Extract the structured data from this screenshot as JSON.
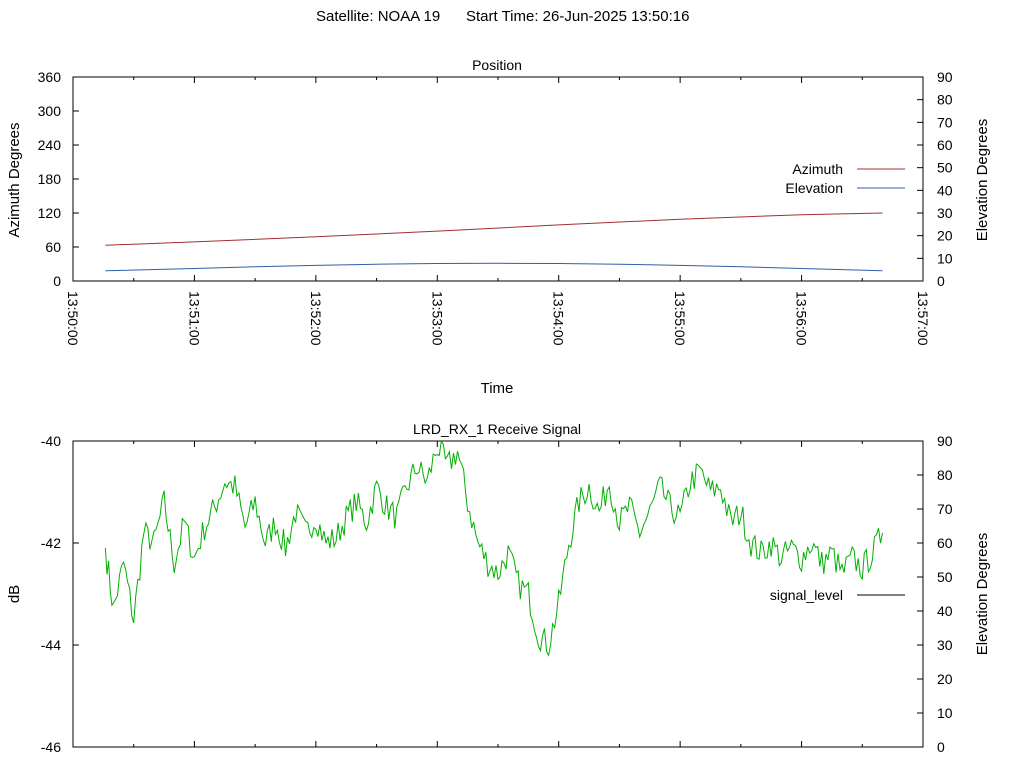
{
  "header": {
    "satellite_text": "Satellite: NOAA 19",
    "start_time_text": "Start Time: 26-Jun-2025 13:50:16"
  },
  "colors": {
    "azimuth": "#a0302f",
    "elevation": "#3060a8",
    "signal": "#00b000",
    "axis": "#000000"
  },
  "chart_data": [
    {
      "type": "line",
      "title": "Position",
      "xlabel": "Time",
      "ylabel": "Azimuth Degrees",
      "y2label": "Elevation Degrees",
      "xlim": [
        "13:50:00",
        "13:57:00"
      ],
      "x_tick_labels": [
        "13:50:00",
        "13:51:00",
        "13:52:00",
        "13:53:00",
        "13:54:00",
        "13:55:00",
        "13:56:00",
        "13:57:00"
      ],
      "ylim": [
        0,
        360
      ],
      "y_tick_labels": [
        "0",
        "60",
        "120",
        "180",
        "240",
        "300",
        "360"
      ],
      "y2lim": [
        0,
        90
      ],
      "y2_tick_labels": [
        "0",
        "10",
        "20",
        "30",
        "40",
        "50",
        "60",
        "70",
        "80",
        "90"
      ],
      "grid": false,
      "legend_position": "right",
      "series": [
        {
          "name": "Azimuth",
          "axis": "y",
          "x": [
            "13:50:16",
            "13:51:00",
            "13:52:00",
            "13:53:00",
            "13:54:00",
            "13:55:00",
            "13:56:00",
            "13:56:40"
          ],
          "values": [
            63,
            69,
            78,
            88,
            99,
            109,
            117,
            120
          ]
        },
        {
          "name": "Elevation",
          "axis": "y2",
          "x": [
            "13:50:16",
            "13:51:00",
            "13:51:30",
            "13:52:00",
            "13:52:30",
            "13:53:00",
            "13:53:30",
            "13:54:00",
            "13:54:30",
            "13:55:00",
            "13:55:30",
            "13:56:00",
            "13:56:40"
          ],
          "values": [
            4.5,
            5.5,
            6.3,
            6.9,
            7.4,
            7.7,
            7.8,
            7.7,
            7.4,
            6.9,
            6.3,
            5.5,
            4.5
          ]
        }
      ]
    },
    {
      "type": "line",
      "title": "LRD_RX_1 Receive Signal",
      "ylabel": "dB",
      "y2label": "Elevation Degrees",
      "xlim": [
        "13:50:00",
        "13:57:00"
      ],
      "ylim": [
        -46,
        -40
      ],
      "y_tick_labels": [
        "-46",
        "-44",
        "-42",
        "-40"
      ],
      "y2lim": [
        0,
        90
      ],
      "y2_tick_labels": [
        "0",
        "10",
        "20",
        "30",
        "40",
        "50",
        "60",
        "70",
        "80",
        "90"
      ],
      "grid": false,
      "legend_position": "right",
      "series": [
        {
          "name": "signal_level",
          "axis": "y",
          "x_seconds_from_1350": [
            16,
            20,
            25,
            30,
            35,
            40,
            45,
            50,
            55,
            60,
            65,
            70,
            75,
            80,
            85,
            90,
            95,
            100,
            105,
            110,
            115,
            120,
            125,
            130,
            135,
            140,
            145,
            150,
            155,
            160,
            165,
            170,
            175,
            180,
            185,
            190,
            195,
            200,
            205,
            210,
            215,
            220,
            225,
            230,
            235,
            240,
            245,
            250,
            255,
            260,
            265,
            270,
            275,
            280,
            285,
            290,
            295,
            300,
            305,
            310,
            315,
            320,
            325,
            330,
            335,
            340,
            345,
            350,
            355,
            360,
            365,
            370,
            375,
            380,
            385,
            390,
            395,
            400
          ],
          "values": [
            -42.1,
            -43.3,
            -42.4,
            -43.5,
            -41.8,
            -42.0,
            -41.2,
            -42.4,
            -41.6,
            -42.3,
            -41.7,
            -41.3,
            -40.8,
            -40.9,
            -41.7,
            -41.2,
            -42.0,
            -41.6,
            -42.1,
            -41.4,
            -41.8,
            -41.5,
            -42.0,
            -41.9,
            -41.5,
            -41.2,
            -41.6,
            -40.9,
            -41.3,
            -41.5,
            -40.9,
            -40.5,
            -40.8,
            -40.1,
            -40.5,
            -40.2,
            -41.2,
            -42.0,
            -42.4,
            -42.6,
            -42.2,
            -42.8,
            -43.0,
            -43.8,
            -44.0,
            -43.2,
            -42.0,
            -41.2,
            -40.9,
            -41.4,
            -40.8,
            -41.6,
            -41.3,
            -41.8,
            -41.4,
            -40.9,
            -41.3,
            -41.5,
            -40.8,
            -40.6,
            -41.0,
            -40.9,
            -41.6,
            -41.4,
            -42.0,
            -42.2,
            -42.0,
            -42.3,
            -42.1,
            -42.3,
            -42.0,
            -42.4,
            -42.2,
            -42.6,
            -42.3,
            -42.5,
            -42.2,
            -41.8
          ]
        }
      ]
    }
  ]
}
